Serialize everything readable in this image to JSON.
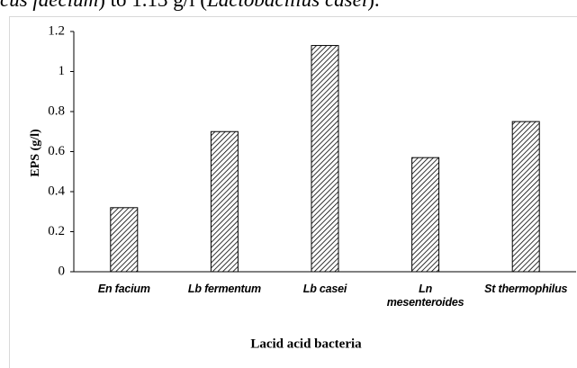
{
  "caption_fragment": [
    "cus faecium",
    ") to 1.13 g/l (",
    "Lactobacillus casei",
    ")."
  ],
  "chart_data": {
    "type": "bar",
    "categories": [
      "En facium",
      "Lb fermentum",
      "Lb casei",
      "Ln mesenteroides",
      "St thermophilus"
    ],
    "values": [
      0.32,
      0.7,
      1.13,
      0.57,
      0.75
    ],
    "ylim": [
      0,
      1.2
    ],
    "yticks": [
      0,
      0.2,
      0.4,
      0.6,
      0.8,
      1,
      1.2
    ],
    "ylabel": "EPS (g/l)",
    "xlabel": "Lacid acid bacteria",
    "color": "#000000",
    "grid": false
  }
}
